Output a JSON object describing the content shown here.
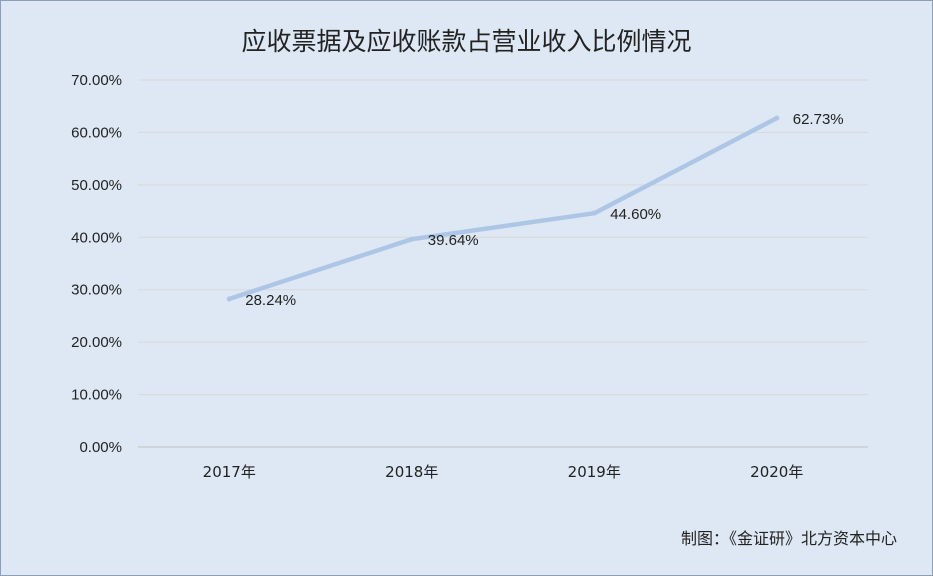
{
  "chart_data": {
    "type": "line",
    "title": "应收票据及应收账款占营业收入比例情况",
    "categories": [
      "2017年",
      "2018年",
      "2019年",
      "2020年"
    ],
    "series": [
      {
        "values": [
          28.24,
          39.64,
          44.6,
          62.73
        ],
        "labels": [
          "28.24%",
          "39.64%",
          "44.60%",
          "62.73%"
        ]
      }
    ],
    "ylim": [
      0,
      70
    ],
    "yticks": [
      "0.00%",
      "10.00%",
      "20.00%",
      "30.00%",
      "40.00%",
      "50.00%",
      "60.00%",
      "70.00%"
    ],
    "grid": true,
    "line_color": "#aec6e6",
    "xlabel": "",
    "ylabel": ""
  },
  "credit": "制图：《金证研》北方资本中心"
}
